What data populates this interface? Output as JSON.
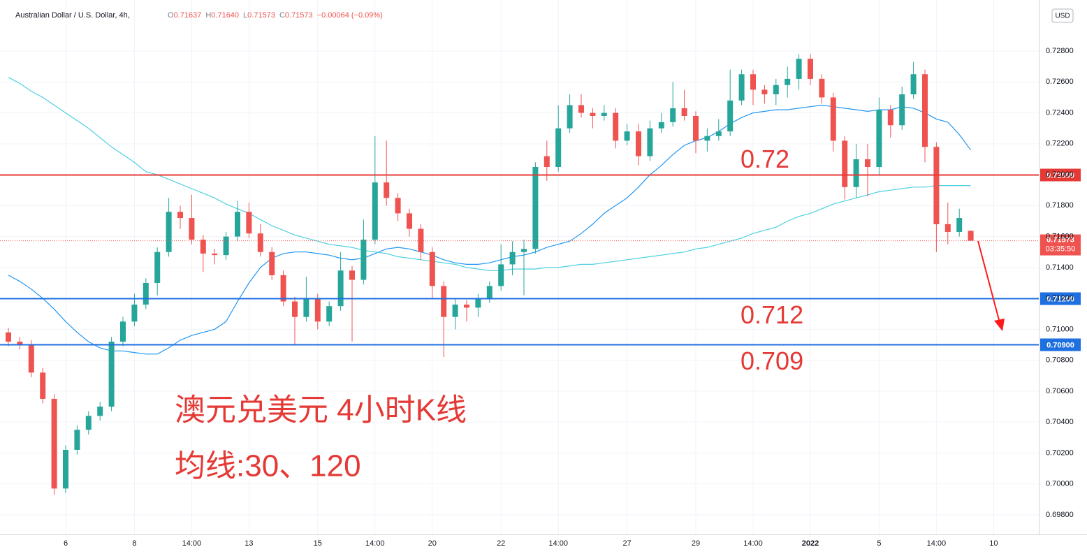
{
  "chart_data": {
    "type": "candlestick",
    "title": "Australian Dollar / U.S. Dollar, 4h,",
    "ohlc": [
      {
        "key": "O",
        "value": "0.71637"
      },
      {
        "key": "H",
        "value": "0.71640"
      },
      {
        "key": "L",
        "value": "0.71573"
      },
      {
        "key": "C",
        "value": "0.71573"
      }
    ],
    "change": "−0.00064 (−0.09%)",
    "currency": "USD",
    "annotations": [
      "澳元兑美元 4小时K线",
      "均线:30、120"
    ],
    "categories": [
      null,
      null,
      null,
      null,
      null,
      "6",
      null,
      null,
      null,
      null,
      null,
      "8",
      null,
      null,
      null,
      null,
      "14:00",
      null,
      null,
      null,
      null,
      "13",
      null,
      null,
      null,
      null,
      null,
      "15",
      null,
      null,
      null,
      null,
      "14:00",
      null,
      null,
      null,
      null,
      "20",
      null,
      null,
      null,
      null,
      null,
      "22",
      null,
      null,
      null,
      null,
      "14:00",
      null,
      null,
      null,
      null,
      null,
      "27",
      null,
      null,
      null,
      null,
      null,
      "29",
      null,
      null,
      null,
      null,
      "14:00",
      null,
      null,
      null,
      null,
      "2022",
      null,
      null,
      null,
      null,
      null,
      "5",
      null,
      null,
      null,
      null,
      "14:00",
      null,
      null,
      null,
      null,
      "10"
    ],
    "open": [
      0.7098,
      0.7092,
      0.709,
      0.7072,
      0.7055,
      0.6997,
      0.7022,
      0.7035,
      0.7044,
      0.705,
      0.7092,
      0.7105,
      0.7116,
      0.713,
      0.715,
      0.7176,
      0.7172,
      0.7158,
      0.7149,
      0.7148,
      0.716,
      0.7176,
      0.7162,
      0.715,
      0.7135,
      0.7118,
      0.7108,
      0.712,
      0.7105,
      0.7115,
      0.7138,
      0.7132,
      0.7158,
      0.7195,
      0.7185,
      0.7175,
      0.7165,
      0.715,
      0.7128,
      0.7108,
      0.7116,
      0.7114,
      0.712,
      0.7128,
      0.7142,
      0.715,
      0.7152,
      0.7212,
      0.7205,
      0.723,
      0.7245,
      0.724,
      0.7238,
      0.724,
      0.7222,
      0.7228,
      0.7212,
      0.723,
      0.7234,
      0.7243,
      0.7238,
      0.7222,
      0.7225,
      0.7228,
      0.7248,
      0.7265,
      0.7255,
      0.7252,
      0.7258,
      0.7262,
      0.7275,
      0.7262,
      0.725,
      0.7222,
      0.7192,
      0.721,
      0.7205,
      0.7242,
      0.7232,
      0.7252,
      0.7265,
      0.7218,
      0.7168,
      0.7163,
      0.71637,
      null,
      null
    ],
    "high": [
      0.7101,
      0.7095,
      0.7093,
      0.7075,
      0.7058,
      0.7025,
      0.7038,
      0.7047,
      0.7053,
      0.7095,
      0.7108,
      0.7123,
      0.7133,
      0.7153,
      0.7185,
      0.718,
      0.7187,
      0.7161,
      0.7152,
      0.7163,
      0.7183,
      0.7182,
      0.7168,
      0.7153,
      0.7138,
      0.7121,
      0.7134,
      0.7123,
      0.7118,
      0.715,
      0.7141,
      0.7171,
      0.7225,
      0.7222,
      0.7188,
      0.7178,
      0.7168,
      0.7153,
      0.7131,
      0.712,
      0.7119,
      0.7123,
      0.7131,
      0.7155,
      0.7157,
      0.7158,
      0.7208,
      0.7222,
      0.7245,
      0.7252,
      0.7252,
      0.7243,
      0.7245,
      0.7243,
      0.7233,
      0.7233,
      0.7235,
      0.724,
      0.726,
      0.7255,
      0.7241,
      0.723,
      0.7236,
      0.7268,
      0.7268,
      0.7268,
      0.7258,
      0.7262,
      0.727,
      0.7278,
      0.7278,
      0.7265,
      0.7253,
      0.7225,
      0.722,
      0.722,
      0.725,
      0.7245,
      0.7257,
      0.7273,
      0.7268,
      0.7221,
      0.7182,
      0.7178,
      0.7164,
      null,
      null
    ],
    "low": [
      0.7089,
      0.7087,
      0.7069,
      0.7052,
      0.6993,
      0.6994,
      0.7019,
      0.7032,
      0.7041,
      0.7047,
      0.7089,
      0.7102,
      0.7113,
      0.7122,
      0.7147,
      0.7165,
      0.7155,
      0.7137,
      0.7142,
      0.7145,
      0.7157,
      0.7159,
      0.7147,
      0.7132,
      0.7115,
      0.709,
      0.7105,
      0.71,
      0.7102,
      0.7112,
      0.7092,
      0.7129,
      0.7155,
      0.718,
      0.717,
      0.716,
      0.7145,
      0.712,
      0.7082,
      0.71,
      0.7105,
      0.7108,
      0.7117,
      0.7125,
      0.7135,
      0.7122,
      0.7149,
      0.7196,
      0.7202,
      0.7227,
      0.7237,
      0.723,
      0.7235,
      0.7217,
      0.7219,
      0.7206,
      0.7209,
      0.7227,
      0.7231,
      0.7235,
      0.7214,
      0.7215,
      0.7222,
      0.7225,
      0.7245,
      0.7245,
      0.7246,
      0.7245,
      0.725,
      0.7255,
      0.7258,
      0.7246,
      0.7215,
      0.7184,
      0.7185,
      0.7186,
      0.72,
      0.7224,
      0.7229,
      0.7249,
      0.7208,
      0.715,
      0.7155,
      0.716,
      0.71573,
      null,
      null
    ],
    "close": [
      0.7092,
      0.709,
      0.7072,
      0.7055,
      0.6997,
      0.7022,
      0.7035,
      0.7044,
      0.705,
      0.7092,
      0.7105,
      0.7116,
      0.713,
      0.715,
      0.7176,
      0.7172,
      0.7158,
      0.7149,
      0.7148,
      0.716,
      0.7176,
      0.7162,
      0.715,
      0.7135,
      0.7118,
      0.7108,
      0.712,
      0.7105,
      0.7115,
      0.7138,
      0.7132,
      0.7158,
      0.7195,
      0.7185,
      0.7175,
      0.7165,
      0.715,
      0.7128,
      0.7108,
      0.7116,
      0.7114,
      0.712,
      0.7128,
      0.7142,
      0.715,
      0.7152,
      0.7205,
      0.7205,
      0.723,
      0.7245,
      0.724,
      0.7238,
      0.724,
      0.7222,
      0.7228,
      0.7212,
      0.723,
      0.7234,
      0.7243,
      0.7238,
      0.7222,
      0.7225,
      0.7228,
      0.7248,
      0.7265,
      0.7255,
      0.7252,
      0.7258,
      0.7262,
      0.7275,
      0.7262,
      0.725,
      0.7222,
      0.7192,
      0.721,
      0.7205,
      0.7242,
      0.7232,
      0.7252,
      0.7265,
      0.7218,
      0.7168,
      0.7163,
      0.7172,
      0.71573,
      null,
      null
    ],
    "up_color": "#26a69a",
    "down_color": "#ef5350",
    "series": [
      {
        "color": "#2196f3",
        "values": [
          0.7135,
          0.7131,
          0.7126,
          0.712,
          0.7113,
          0.7105,
          0.7098,
          0.7092,
          0.7088,
          0.7086,
          0.7086,
          0.7085,
          0.7084,
          0.7084,
          0.7088,
          0.7093,
          0.7096,
          0.7098,
          0.71,
          0.7105,
          0.7118,
          0.713,
          0.714,
          0.7146,
          0.7149,
          0.715,
          0.715,
          0.7149,
          0.7148,
          0.7146,
          0.7145,
          0.7146,
          0.7149,
          0.7152,
          0.7153,
          0.7152,
          0.715,
          0.7148,
          0.7145,
          0.7143,
          0.7142,
          0.7142,
          0.7143,
          0.7145,
          0.7147,
          0.7148,
          0.715,
          0.7153,
          0.7155,
          0.7157,
          0.7162,
          0.7168,
          0.7175,
          0.718,
          0.7185,
          0.7192,
          0.72,
          0.7206,
          0.7213,
          0.7219,
          0.7222,
          0.7224,
          0.7228,
          0.7233,
          0.7237,
          0.724,
          0.7241,
          0.7242,
          0.7242,
          0.7243,
          0.7244,
          0.7245,
          0.7244,
          0.7243,
          0.7242,
          0.7241,
          0.7242,
          0.7242,
          0.7244,
          0.7243,
          0.724,
          0.7236,
          0.7234,
          0.7226,
          0.7216,
          null,
          null
        ]
      },
      {
        "color": "#4dd0e1",
        "values": [
          0.7263,
          0.7259,
          0.7254,
          0.725,
          0.7245,
          0.724,
          0.7235,
          0.723,
          0.7224,
          0.7218,
          0.7213,
          0.7208,
          0.7202,
          0.72,
          0.7197,
          0.7194,
          0.7191,
          0.7188,
          0.7185,
          0.7181,
          0.7178,
          0.7175,
          0.7171,
          0.7167,
          0.7164,
          0.7161,
          0.7159,
          0.7157,
          0.7155,
          0.7154,
          0.7153,
          0.7151,
          0.715,
          0.7149,
          0.7147,
          0.7146,
          0.7145,
          0.7144,
          0.7143,
          0.7142,
          0.714,
          0.7139,
          0.7138,
          0.7138,
          0.7139,
          0.7139,
          0.7139,
          0.714,
          0.714,
          0.7141,
          0.7142,
          0.7142,
          0.7143,
          0.7144,
          0.7145,
          0.7146,
          0.7147,
          0.7148,
          0.7149,
          0.715,
          0.7152,
          0.7153,
          0.7155,
          0.7157,
          0.7159,
          0.7162,
          0.7164,
          0.7166,
          0.717,
          0.7173,
          0.7175,
          0.7178,
          0.7181,
          0.7183,
          0.7185,
          0.7187,
          0.7189,
          0.719,
          0.7191,
          0.7192,
          0.7192,
          0.7193,
          0.7193,
          0.7193,
          0.7193,
          null,
          null
        ]
      }
    ],
    "ylim": [
      0.69673,
      0.73085
    ],
    "yticks": [
      {
        "value": 0.698,
        "label": "0.69800"
      },
      {
        "value": 0.7,
        "label": "0.70000"
      },
      {
        "value": 0.702,
        "label": "0.70200"
      },
      {
        "value": 0.704,
        "label": "0.70400"
      },
      {
        "value": 0.706,
        "label": "0.70600"
      },
      {
        "value": 0.708,
        "label": "0.70800"
      },
      {
        "value": 0.71,
        "label": "0.71000"
      },
      {
        "value": 0.712,
        "label": "0.71200"
      },
      {
        "value": 0.714,
        "label": "0.71400"
      },
      {
        "value": 0.716,
        "label": "0.71600"
      },
      {
        "value": 0.718,
        "label": "0.71800"
      },
      {
        "value": 0.72,
        "label": "0.72000"
      },
      {
        "value": 0.722,
        "label": "0.72200"
      },
      {
        "value": 0.724,
        "label": "0.72400"
      },
      {
        "value": 0.726,
        "label": "0.72600"
      },
      {
        "value": 0.728,
        "label": "0.72800"
      }
    ],
    "grid": true,
    "levels": [
      {
        "value": 0.72,
        "label": "0.72000",
        "note": "0.72",
        "color": "#e53935"
      },
      {
        "value": 0.712,
        "label": "0.71200",
        "note": "0.712",
        "color": "#1e6fe0"
      },
      {
        "value": 0.709,
        "label": "0.70900",
        "note": "0.709",
        "color": "#1e6fe0"
      }
    ],
    "last_price": {
      "value": 0.71573,
      "label": "0.71573",
      "countdown": "03:35:50",
      "color": "#ef5350"
    }
  }
}
